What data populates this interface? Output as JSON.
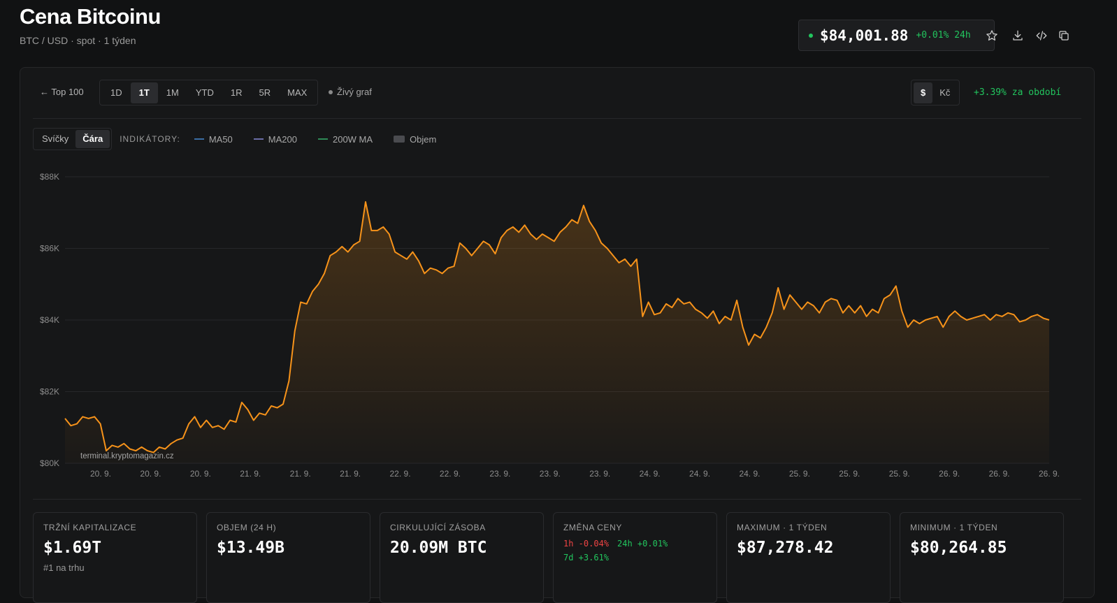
{
  "header": {
    "title": "Cena Bitcoinu",
    "subtitle": "BTC / USD · spot · 1 týden"
  },
  "ticker": {
    "price": "$84,001.88",
    "change": "+0.01% 24h"
  },
  "actions": {
    "icons": [
      "star-icon",
      "download-icon",
      "code-icon",
      "copy-icon"
    ]
  },
  "toolbar": {
    "back_label": "← Top 100",
    "ranges": [
      "1D",
      "1T",
      "1M",
      "YTD",
      "1R",
      "5R",
      "MAX"
    ],
    "active_range": "1T",
    "live_label": "Živý graf",
    "currencies": [
      "$",
      "Kč"
    ],
    "active_currency": "$",
    "period_change": "+3.39% za období"
  },
  "indicators": {
    "types": [
      "Svíčky",
      "Čára"
    ],
    "active_type": "Čára",
    "label": "INDIKÁTORY:",
    "items": [
      {
        "name": "MA50",
        "color": "#3b6ea5"
      },
      {
        "name": "MA200",
        "color": "#6b6ea8"
      },
      {
        "name": "200W MA",
        "color": "#2e8b57"
      },
      {
        "name": "Objem",
        "color": "#4a4b4f"
      }
    ]
  },
  "chart_data": {
    "type": "area",
    "line_color": "#f7931a",
    "watermark": "terminal.kryptomagazin.cz",
    "ylim": [
      80000,
      88000
    ],
    "y_ticks": [
      80000,
      82000,
      84000,
      86000,
      88000
    ],
    "y_tick_labels": [
      "$80K",
      "$82K",
      "$84K",
      "$86K",
      "$88K"
    ],
    "x_tick_labels": [
      "20. 9.",
      "20. 9.",
      "20. 9.",
      "21. 9.",
      "21. 9.",
      "21. 9.",
      "22. 9.",
      "22. 9.",
      "23. 9.",
      "23. 9.",
      "23. 9.",
      "24. 9.",
      "24. 9.",
      "24. 9.",
      "25. 9.",
      "25. 9.",
      "25. 9.",
      "26. 9.",
      "26. 9.",
      "26. 9."
    ],
    "grid": true,
    "values": [
      81250,
      81050,
      81100,
      81300,
      81250,
      81300,
      81100,
      80350,
      80500,
      80450,
      80550,
      80400,
      80350,
      80450,
      80350,
      80300,
      80450,
      80400,
      80550,
      80650,
      80700,
      81100,
      81300,
      81000,
      81200,
      81000,
      81050,
      80950,
      81200,
      81150,
      81700,
      81500,
      81200,
      81400,
      81350,
      81600,
      81550,
      81650,
      82300,
      83700,
      84500,
      84450,
      84800,
      85000,
      85300,
      85800,
      85900,
      86050,
      85900,
      86100,
      86200,
      87300,
      86500,
      86500,
      86600,
      86400,
      85900,
      85800,
      85700,
      85900,
      85650,
      85300,
      85450,
      85400,
      85300,
      85450,
      85500,
      86150,
      86000,
      85800,
      86000,
      86200,
      86100,
      85850,
      86300,
      86500,
      86600,
      86450,
      86650,
      86400,
      86250,
      86400,
      86300,
      86200,
      86450,
      86600,
      86800,
      86700,
      87200,
      86750,
      86500,
      86150,
      86000,
      85800,
      85600,
      85700,
      85500,
      85700,
      84100,
      84500,
      84150,
      84200,
      84450,
      84350,
      84600,
      84450,
      84500,
      84300,
      84200,
      84050,
      84250,
      83900,
      84100,
      84000,
      84550,
      83800,
      83300,
      83600,
      83500,
      83800,
      84200,
      84900,
      84300,
      84700,
      84500,
      84300,
      84500,
      84400,
      84200,
      84500,
      84600,
      84550,
      84200,
      84400,
      84200,
      84400,
      84100,
      84300,
      84200,
      84600,
      84700,
      84950,
      84250,
      83800,
      84000,
      83900,
      84000,
      84050,
      84100,
      83800,
      84100,
      84250,
      84100,
      84000,
      84050,
      84100,
      84150,
      84000,
      84150,
      84100,
      84200,
      84150,
      83950,
      84000,
      84100,
      84150,
      84050,
      84001.88
    ],
    "stats": [
      {
        "label": "TRŽNÍ KAPITALIZACE",
        "value": "$1.69T",
        "sub": "#1 na trhu"
      },
      {
        "label": "OBJEM (24 H)",
        "value": "$13.49B"
      },
      {
        "label": "CIRKULUJÍCÍ ZÁSOBA",
        "value": "20.09M BTC"
      },
      {
        "label": "ZMĚNA CENY",
        "changes": [
          "1h -0.04%",
          "24h +0.01%",
          "7d +3.61%"
        ]
      },
      {
        "label": "MAXIMUM · 1 TÝDEN",
        "value": "$87,278.42"
      },
      {
        "label": "MINIMUM · 1 TÝDEN",
        "value": "$80,264.85"
      }
    ]
  }
}
